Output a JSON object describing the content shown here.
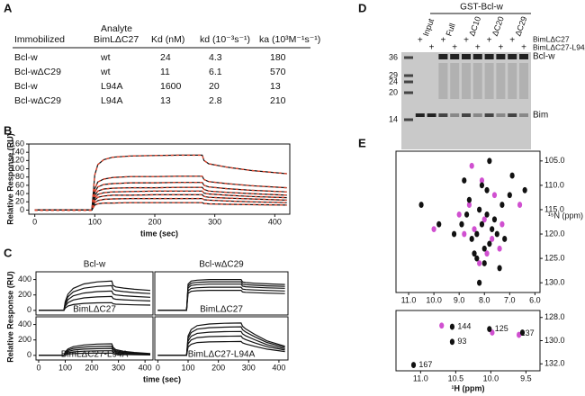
{
  "panel_labels": [
    "A",
    "B",
    "C",
    "D",
    "E"
  ],
  "table": {
    "headers": [
      "Immobilized",
      "Analyte",
      "BimLΔC27",
      "Kd (nM)",
      "kd (10⁻³s⁻¹)",
      "ka (10³M⁻¹s⁻¹)"
    ],
    "rows": [
      [
        "Bcl-w",
        "wt",
        "24",
        "4.3",
        "180"
      ],
      [
        "Bcl-wΔC29",
        "wt",
        "11",
        "6.1",
        "570"
      ],
      [
        "Bcl-w",
        "L94A",
        "1600",
        "20",
        "13"
      ],
      [
        "Bcl-wΔC29",
        "L94A",
        "13",
        "2.8",
        "210"
      ]
    ]
  },
  "gel": {
    "title": "GST-Bcl-w",
    "lanes": [
      "Input",
      "Full",
      "ΔC10",
      "ΔC20",
      "ΔC29"
    ],
    "row1_signs": [
      "+",
      "+",
      "+",
      "+",
      "+"
    ],
    "row2_signs": [
      "+",
      "+",
      "+",
      "+",
      "+"
    ],
    "conditions": [
      "BimLΔC27",
      "BimLΔC27-L94A"
    ],
    "markers": [
      "36",
      "29",
      "24",
      "20",
      "14"
    ],
    "band_labels": [
      "Bcl-w",
      "Bim"
    ]
  },
  "chart_data": [
    {
      "type": "line",
      "ylabel": "Relative Response (RU)",
      "xlabel": "time (sec)",
      "xlim": [
        -10,
        425
      ],
      "ylim": [
        -10,
        160
      ],
      "xticks": [
        0,
        100,
        200,
        300,
        400
      ],
      "yticks": [
        0,
        20,
        40,
        60,
        80,
        100,
        120,
        140,
        160
      ],
      "fit_color": "#e0452e",
      "x": [
        0,
        95,
        100,
        105,
        115,
        130,
        160,
        200,
        240,
        279,
        282,
        290,
        320,
        360,
        420
      ],
      "series": [
        {
          "color": "#111111",
          "values": [
            0,
            0,
            85,
            110,
            122,
            128,
            131,
            132,
            133,
            133,
            120,
            112,
            104,
            96,
            88
          ]
        },
        {
          "color": "#111111",
          "values": [
            0,
            0,
            52,
            68,
            75,
            79,
            81,
            81,
            82,
            82,
            74,
            69,
            64,
            59,
            54
          ]
        },
        {
          "color": "#111111",
          "values": [
            0,
            0,
            43,
            56,
            62,
            64,
            66,
            66,
            67,
            67,
            60,
            56,
            52,
            48,
            44
          ]
        },
        {
          "color": "#111111",
          "values": [
            0,
            0,
            35,
            46,
            51,
            53,
            54,
            54,
            55,
            55,
            50,
            46,
            43,
            40,
            36
          ]
        },
        {
          "color": "#111111",
          "values": [
            0,
            0,
            29,
            38,
            42,
            44,
            45,
            46,
            46,
            46,
            41,
            39,
            36,
            33,
            30
          ]
        },
        {
          "color": "#111111",
          "values": [
            0,
            0,
            24,
            31,
            34,
            36,
            36,
            37,
            37,
            37,
            33,
            31,
            29,
            27,
            24
          ]
        },
        {
          "color": "#111111",
          "values": [
            0,
            0,
            18,
            23,
            26,
            27,
            28,
            28,
            28,
            28,
            25,
            24,
            22,
            20,
            18
          ]
        },
        {
          "color": "#111111",
          "values": [
            0,
            0,
            12,
            15,
            17,
            17,
            18,
            18,
            18,
            18,
            16,
            15,
            14,
            13,
            12
          ]
        }
      ]
    },
    {
      "type": "line",
      "title": "Bcl-w",
      "annotation": "BimLΔC27",
      "xlim": [
        -10,
        430
      ],
      "ylim": [
        -60,
        500
      ],
      "yticks": [
        0,
        200,
        400
      ],
      "x": [
        0,
        95,
        100,
        110,
        130,
        170,
        220,
        275,
        280,
        290,
        320,
        360,
        420
      ],
      "series": [
        {
          "color": "#111111",
          "values": [
            0,
            0,
            114,
            209,
            285,
            342,
            369,
            380,
            323,
            304,
            289,
            274,
            258
          ]
        },
        {
          "color": "#111111",
          "values": [
            0,
            0,
            96,
            176,
            240,
            288,
            310,
            320,
            272,
            256,
            243,
            230,
            218
          ]
        },
        {
          "color": "#111111",
          "values": [
            0,
            0,
            75,
            138,
            188,
            225,
            243,
            250,
            213,
            200,
            190,
            180,
            170
          ]
        },
        {
          "color": "#111111",
          "values": [
            0,
            0,
            54,
            99,
            135,
            162,
            175,
            180,
            153,
            144,
            137,
            130,
            122
          ]
        },
        {
          "color": "#111111",
          "values": [
            0,
            0,
            30,
            55,
            75,
            90,
            97,
            100,
            85,
            80,
            76,
            72,
            68
          ]
        }
      ]
    },
    {
      "type": "line",
      "title": "Bcl-wΔC29",
      "annotation": "BimLΔC27",
      "xlim": [
        -10,
        430
      ],
      "ylim": [
        -60,
        500
      ],
      "x": [
        0,
        95,
        100,
        110,
        130,
        170,
        220,
        275,
        280,
        290,
        320,
        360,
        420
      ],
      "series": [
        {
          "color": "#111111",
          "values": [
            0,
            0,
            340,
            380,
            392,
            400,
            400,
            400,
            368,
            360,
            352,
            344,
            336
          ]
        },
        {
          "color": "#111111",
          "values": [
            0,
            0,
            315,
            352,
            363,
            370,
            370,
            370,
            340,
            333,
            326,
            318,
            311
          ]
        },
        {
          "color": "#111111",
          "values": [
            0,
            0,
            289,
            323,
            333,
            340,
            340,
            340,
            313,
            306,
            299,
            292,
            286
          ]
        },
        {
          "color": "#111111",
          "values": [
            0,
            0,
            255,
            285,
            294,
            300,
            300,
            300,
            276,
            270,
            264,
            258,
            252
          ]
        },
        {
          "color": "#111111",
          "values": [
            0,
            0,
            221,
            247,
            255,
            260,
            260,
            260,
            239,
            234,
            229,
            224,
            218
          ]
        }
      ]
    },
    {
      "type": "line",
      "annotation": "BimLΔC27-L94A",
      "ylabel": "Relative Response (RU)",
      "xlabel": "time (sec)",
      "xlim": [
        -10,
        430
      ],
      "ylim": [
        -60,
        500
      ],
      "xticks": [
        0,
        100,
        200,
        300,
        400
      ],
      "yticks": [
        0,
        200,
        400
      ],
      "x": [
        0,
        95,
        100,
        110,
        130,
        170,
        220,
        275,
        280,
        290,
        320,
        360,
        420
      ],
      "series": [
        {
          "color": "#111111",
          "values": [
            0,
            0,
            45,
            83,
            113,
            135,
            146,
            150,
            105,
            75,
            53,
            38,
            23
          ]
        },
        {
          "color": "#111111",
          "values": [
            0,
            0,
            36,
            66,
            90,
            108,
            116,
            120,
            84,
            60,
            42,
            30,
            18
          ]
        },
        {
          "color": "#111111",
          "values": [
            0,
            0,
            27,
            50,
            68,
            81,
            87,
            90,
            63,
            45,
            32,
            23,
            14
          ]
        },
        {
          "color": "#111111",
          "values": [
            0,
            0,
            18,
            33,
            45,
            54,
            58,
            60,
            42,
            30,
            21,
            15,
            9
          ]
        },
        {
          "color": "#111111",
          "values": [
            0,
            0,
            9,
            17,
            23,
            27,
            29,
            30,
            21,
            15,
            11,
            8,
            5
          ]
        }
      ]
    },
    {
      "type": "line",
      "annotation": "BimLΔC27-L94A",
      "xlim": [
        -10,
        430
      ],
      "ylim": [
        -60,
        500
      ],
      "xticks": [
        0,
        100,
        200,
        300,
        400
      ],
      "x": [
        0,
        95,
        100,
        110,
        130,
        170,
        220,
        275,
        280,
        290,
        320,
        360,
        420
      ],
      "series": [
        {
          "color": "#111111",
          "values": [
            0,
            0,
            252,
            336,
            386,
            407,
            416,
            420,
            378,
            344,
            273,
            189,
            118
          ]
        },
        {
          "color": "#111111",
          "values": [
            0,
            0,
            222,
            296,
            340,
            359,
            366,
            370,
            333,
            303,
            241,
            167,
            104
          ]
        },
        {
          "color": "#111111",
          "values": [
            0,
            0,
            186,
            248,
            285,
            301,
            307,
            310,
            279,
            254,
            202,
            140,
            87
          ]
        },
        {
          "color": "#111111",
          "values": [
            0,
            0,
            150,
            200,
            230,
            243,
            248,
            250,
            225,
            205,
            163,
            113,
            70
          ]
        },
        {
          "color": "#111111",
          "values": [
            0,
            0,
            108,
            144,
            166,
            175,
            178,
            180,
            162,
            148,
            117,
            81,
            50
          ]
        }
      ]
    },
    {
      "type": "scatter",
      "ylabel": "¹⁵N (ppm)",
      "xlim": [
        11.5,
        5.8
      ],
      "ylim": [
        132,
        103
      ],
      "xticks": [
        {
          "value": 11,
          "label": "11.0"
        },
        {
          "value": 10,
          "label": "10.0"
        },
        {
          "value": 9,
          "label": "9.0"
        },
        {
          "value": 8,
          "label": "8.0"
        },
        {
          "value": 7,
          "label": "7.0"
        },
        {
          "value": 6,
          "label": "6.0"
        }
      ],
      "yticks": [
        {
          "value": 105,
          "label": "105.0"
        },
        {
          "value": 110,
          "label": "110.0"
        },
        {
          "value": 115,
          "label": "115.0"
        },
        {
          "value": 120,
          "label": "120.0"
        },
        {
          "value": 125,
          "label": "125.0"
        },
        {
          "value": 130,
          "label": "130.0"
        }
      ],
      "series": [
        {
          "color": "#d050d0",
          "x": [
            8.0,
            8.4,
            7.7,
            7.9,
            8.6,
            7.3,
            8.2,
            8.8,
            7.6,
            9.0,
            8.1,
            7.4,
            6.6,
            8.5,
            10.0
          ],
          "values": [
            117,
            119,
            121,
            124,
            114,
            118,
            126,
            120,
            112,
            116,
            109,
            123,
            114,
            106,
            119
          ]
        },
        {
          "color": "#111111",
          "x": [
            8.1,
            8.3,
            7.9,
            8.5,
            7.7,
            8.0,
            8.2,
            7.6,
            8.4,
            7.8,
            8.6,
            7.5,
            8.9,
            7.3,
            8.0,
            8.1,
            7.9,
            8.7,
            7.2,
            8.3,
            9.2,
            7.0,
            6.9,
            8.8,
            7.4,
            9.8,
            10.5,
            6.4,
            8.2,
            7.8
          ],
          "values": [
            118,
            120,
            116,
            121,
            119,
            123,
            115,
            117,
            124,
            122,
            113,
            120,
            118,
            114,
            126,
            110,
            111,
            116,
            121,
            125,
            120,
            112,
            108,
            109,
            127,
            118,
            114,
            111,
            130,
            105
          ]
        }
      ]
    },
    {
      "type": "scatter",
      "xlabel": "¹H (ppm)",
      "xlim": [
        11.35,
        9.3
      ],
      "ylim": [
        132.6,
        127.4
      ],
      "xticks": [
        {
          "value": 11,
          "label": "11.0"
        },
        {
          "value": 10.5,
          "label": "10.5"
        },
        {
          "value": 10,
          "label": "10.0"
        },
        {
          "value": 9.5,
          "label": "9.5"
        }
      ],
      "yticks": [
        {
          "value": 128,
          "label": "128.0"
        },
        {
          "value": 130,
          "label": "130.0"
        },
        {
          "value": 132,
          "label": "132.0"
        }
      ],
      "series": [
        {
          "color": "#d050d0",
          "x": [
            10.7,
            9.98,
            9.6
          ],
          "values": [
            128.7,
            129.3,
            129.5
          ]
        },
        {
          "color": "#111111",
          "x": [
            10.55,
            10.55,
            10.02,
            9.55,
            11.1
          ],
          "values": [
            128.8,
            130.1,
            129.0,
            129.3,
            132.1
          ]
        }
      ],
      "annotations": [
        {
          "text": "144",
          "x": 10.5,
          "y": 128.8
        },
        {
          "text": "93",
          "x": 10.5,
          "y": 130.1
        },
        {
          "text": "125",
          "x": 9.97,
          "y": 129.0
        },
        {
          "text": "137",
          "x": 9.6,
          "y": 129.4
        },
        {
          "text": "167",
          "x": 11.05,
          "y": 132.1
        }
      ]
    }
  ]
}
